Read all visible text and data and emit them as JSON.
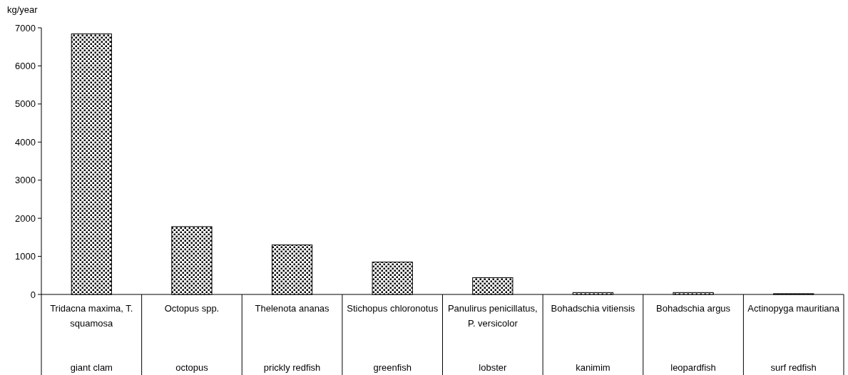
{
  "chart_data": {
    "type": "bar",
    "ylabel": "kg/year",
    "categories": [
      "Tridacna maxima, T. squamosa\ngiant clam",
      "Octopus spp.\noctopus",
      "Thelenota ananas\nprickly redfish",
      "Stichopus chloronotus\ngreenfish",
      "Panulirus penicillatus, P. versicolor\nlobster",
      "Bohadschia vitiensis\nkanimim",
      "Bohadschia argus\nleopardfish",
      "Actinopyga mauritiana\nsurf redfish"
    ],
    "values": [
      6840,
      1780,
      1300,
      850,
      440,
      50,
      50,
      20
    ],
    "color": "#000000",
    "ylim": [
      0,
      7000
    ],
    "yticks": [
      0,
      1000,
      2000,
      3000,
      4000,
      5000,
      6000,
      7000
    ],
    "grid": false
  }
}
